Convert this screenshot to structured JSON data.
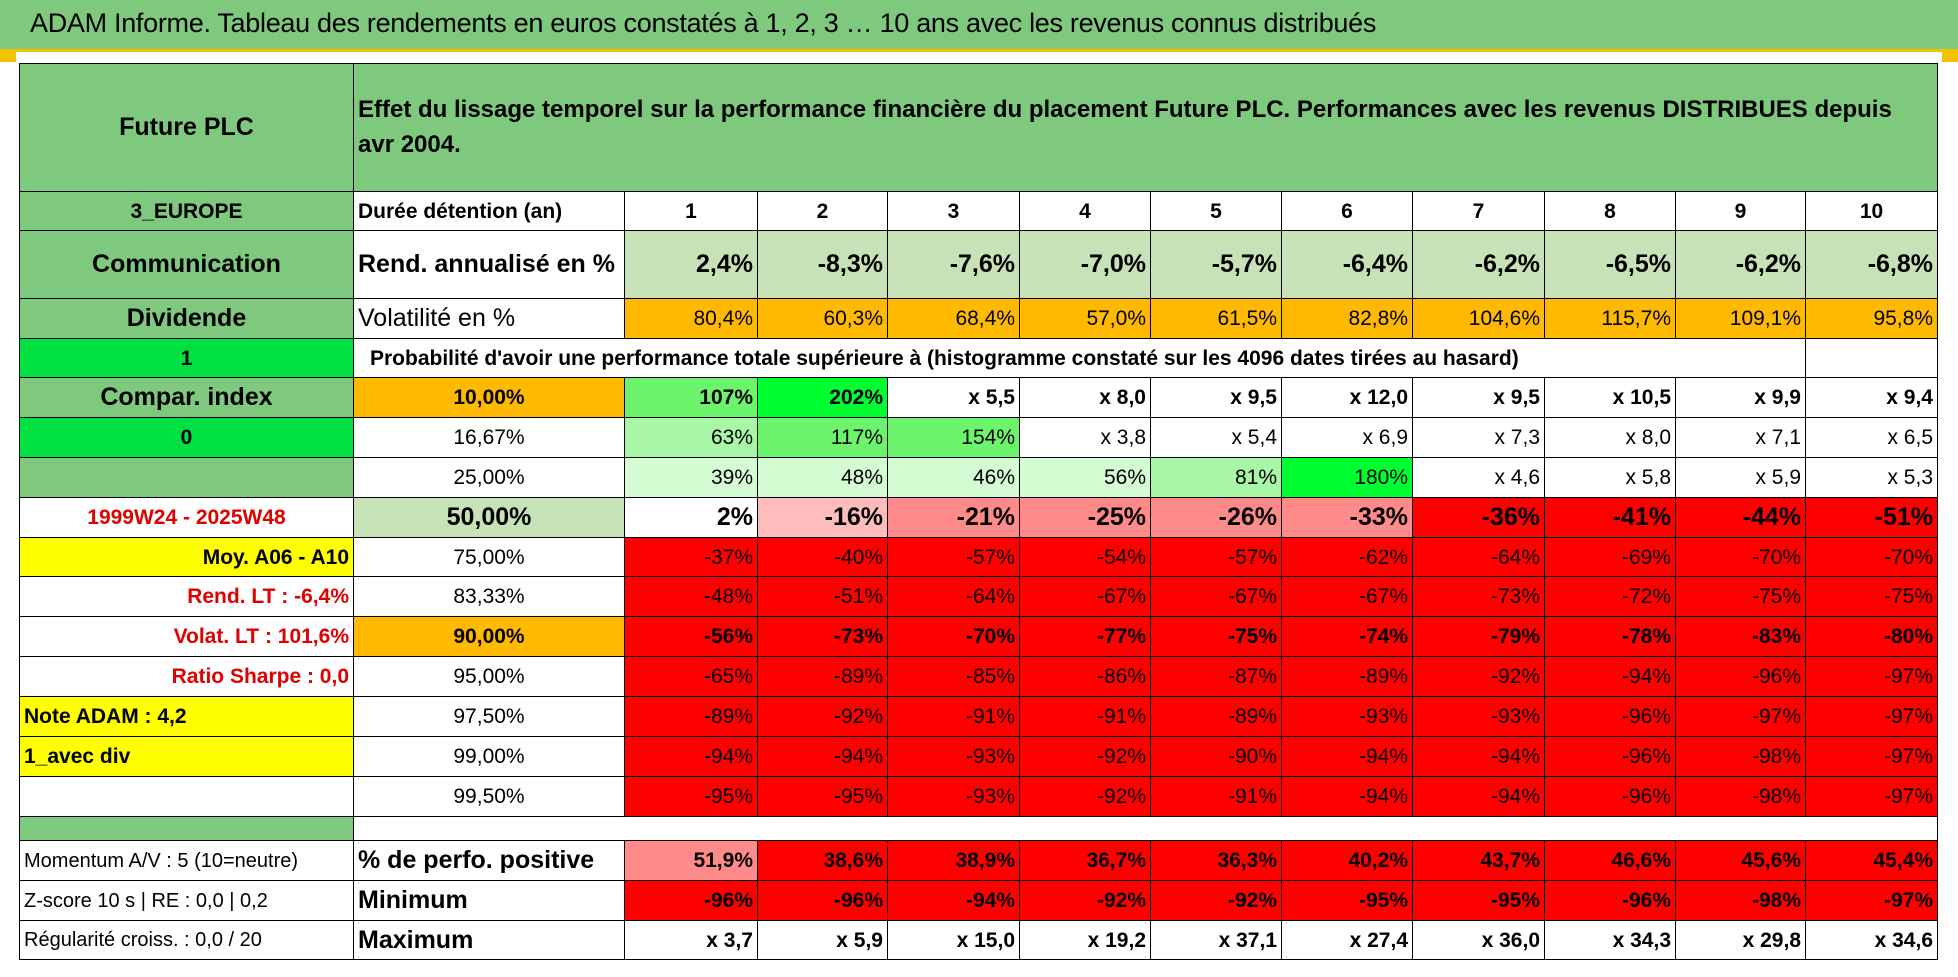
{
  "title": "ADAM Informe. Tableau des rendements en euros constatés à 1, 2, 3 … 10 ans avec les revenus connus distribués",
  "header": {
    "fund": "Future PLC",
    "description": "Effet du lissage temporel sur la performance financière du placement Future PLC. Performances avec les revenus DISTRIBUES depuis avr 2004."
  },
  "left": {
    "region": "3_EUROPE",
    "sector": "Communication",
    "income": "Dividende",
    "flag1": "1",
    "compar": "Compar. index",
    "flag0": "0",
    "blank": "",
    "period": "1999W24 - 2025W48",
    "moy": "Moy. A06 - A10",
    "rend_lt": "Rend. LT :    -6,4%",
    "volat_lt": "Volat. LT :    101,6%",
    "sharpe": "Ratio Sharpe :    0,0",
    "note": "Note ADAM : 4,2",
    "div": "1_avec div"
  },
  "labels": {
    "duree": "Durée détention (an)",
    "rend": "Rend. annualisé en %",
    "vol": "Volatilité en %",
    "proba": "Probabilité d'avoir une performance totale supérieure à (histogramme constaté sur les 4096 dates tirées au hasard)",
    "pos": "% de perfo. positive",
    "min": "Minimum",
    "max": "Maximum"
  },
  "years": [
    "1",
    "2",
    "3",
    "4",
    "5",
    "6",
    "7",
    "8",
    "9",
    "10"
  ],
  "rend": [
    "2,4%",
    "-8,3%",
    "-7,6%",
    "-7,0%",
    "-5,7%",
    "-6,4%",
    "-6,2%",
    "-6,5%",
    "-6,2%",
    "-6,8%"
  ],
  "vol": [
    "80,4%",
    "60,3%",
    "68,4%",
    "57,0%",
    "61,5%",
    "82,8%",
    "104,6%",
    "115,7%",
    "109,1%",
    "95,8%"
  ],
  "quantiles": [
    {
      "q": "10,00%",
      "vals": [
        "107%",
        "202%",
        "x 5,5",
        "x 8,0",
        "x 9,5",
        "x 12,0",
        "x 9,5",
        "x 10,5",
        "x 9,9",
        "x 9,4"
      ]
    },
    {
      "q": "16,67%",
      "vals": [
        "63%",
        "117%",
        "154%",
        "x 3,8",
        "x 5,4",
        "x 6,9",
        "x 7,3",
        "x 8,0",
        "x 7,1",
        "x 6,5"
      ]
    },
    {
      "q": "25,00%",
      "vals": [
        "39%",
        "48%",
        "46%",
        "56%",
        "81%",
        "180%",
        "x 4,6",
        "x 5,8",
        "x 5,9",
        "x 5,3"
      ]
    },
    {
      "q": "50,00%",
      "vals": [
        "2%",
        "-16%",
        "-21%",
        "-25%",
        "-26%",
        "-33%",
        "-36%",
        "-41%",
        "-44%",
        "-51%"
      ]
    },
    {
      "q": "75,00%",
      "vals": [
        "-37%",
        "-40%",
        "-57%",
        "-54%",
        "-57%",
        "-62%",
        "-64%",
        "-69%",
        "-70%",
        "-70%"
      ]
    },
    {
      "q": "83,33%",
      "vals": [
        "-48%",
        "-51%",
        "-64%",
        "-67%",
        "-67%",
        "-67%",
        "-73%",
        "-72%",
        "-75%",
        "-75%"
      ]
    },
    {
      "q": "90,00%",
      "vals": [
        "-56%",
        "-73%",
        "-70%",
        "-77%",
        "-75%",
        "-74%",
        "-79%",
        "-78%",
        "-83%",
        "-80%"
      ]
    },
    {
      "q": "95,00%",
      "vals": [
        "-65%",
        "-89%",
        "-85%",
        "-86%",
        "-87%",
        "-89%",
        "-92%",
        "-94%",
        "-96%",
        "-97%"
      ]
    },
    {
      "q": "97,50%",
      "vals": [
        "-89%",
        "-92%",
        "-91%",
        "-91%",
        "-89%",
        "-93%",
        "-93%",
        "-96%",
        "-97%",
        "-97%"
      ]
    },
    {
      "q": "99,00%",
      "vals": [
        "-94%",
        "-94%",
        "-93%",
        "-92%",
        "-90%",
        "-94%",
        "-94%",
        "-96%",
        "-98%",
        "-97%"
      ]
    },
    {
      "q": "99,50%",
      "vals": [
        "-95%",
        "-95%",
        "-93%",
        "-92%",
        "-91%",
        "-94%",
        "-94%",
        "-96%",
        "-98%",
        "-97%"
      ]
    }
  ],
  "bottom": {
    "momentum": "Momentum A/V : 5 (10=neutre)",
    "zscore": "Z-score 10 s | RE : 0,0 | 0,2",
    "regul": "Régularité croiss. : 0,0 / 20"
  },
  "pos": [
    "51,9%",
    "38,6%",
    "38,9%",
    "36,7%",
    "36,3%",
    "40,2%",
    "43,7%",
    "46,6%",
    "45,6%",
    "45,4%"
  ],
  "min": [
    "-96%",
    "-96%",
    "-94%",
    "-92%",
    "-92%",
    "-95%",
    "-95%",
    "-96%",
    "-98%",
    "-97%"
  ],
  "max": [
    "x 3,7",
    "x 5,9",
    "x 15,0",
    "x 19,2",
    "x 37,1",
    "x 27,4",
    "x 36,0",
    "x 34,3",
    "x 29,8",
    "x 34,6"
  ],
  "colors": {
    "title_bg": "#7fc97f",
    "orange": "#ffb900",
    "red": "#ff0000",
    "yellow": "#ffff00"
  }
}
